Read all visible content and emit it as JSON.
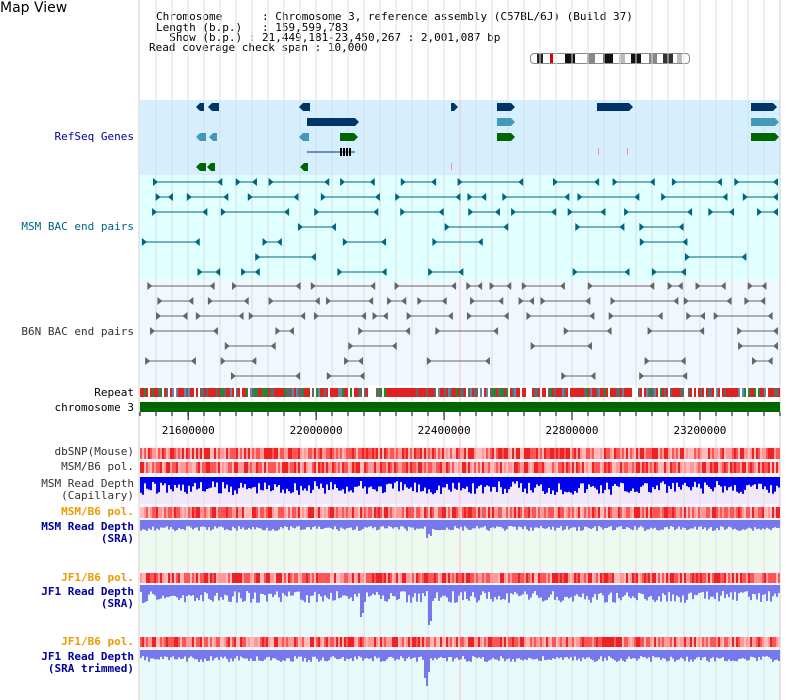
{
  "app_title": "Map View",
  "info": {
    "chromosome_label": "Chromosome",
    "chromosome_value": "Chromosome 3, reference assembly (C57BL/6J) (Build 37)",
    "length_label": "Length (b.p.)",
    "length_value": "159,599,783",
    "show_label": "Show (b.p.)",
    "show_value": "21,449,181-23,450,267 : 2,001,087 bp",
    "span_label": "Read coverage check span",
    "span_value": "10,000"
  },
  "tracks": {
    "refseq": "RefSeq Genes",
    "msm_bac": "MSM BAC end pairs",
    "b6n_bac": "B6N BAC end pairs",
    "repeat": "Repeat",
    "chromosome": "chromosome 3",
    "dbsnp": "dbSNP(Mouse)",
    "msm_b6_pol": "MSM/B6 pol.",
    "msm_depth_cap_1": "MSM Read Depth",
    "msm_depth_cap_2": "(Capillary)",
    "msm_b6_pol_2": "MSM/B6 pol.",
    "msm_depth_sra_1": "MSM Read Depth",
    "msm_depth_sra_2": "(SRA)",
    "jf1_b6_pol": "JF1/B6 pol.",
    "jf1_depth_sra_1": "JF1 Read Depth",
    "jf1_depth_sra_2": "(SRA)",
    "jf1_b6_pol_2": "JF1/B6 pol.",
    "jf1_depth_trim_1": "JF1 Read Depth",
    "jf1_depth_trim_2": "(SRA trimmed)"
  },
  "axis": {
    "ticks": [
      "21600000",
      "22000000",
      "22400000",
      "22800000",
      "23200000"
    ],
    "tick_values": [
      21600000,
      22000000,
      22400000,
      22800000,
      23200000
    ],
    "range": [
      21449181,
      23450267
    ]
  },
  "colors": {
    "refseq_bg": "#d6efff",
    "bac_bg": "#e0ffff",
    "b6n_bg": "#f0f8ff",
    "gene_dark": "#003366",
    "gene_light": "#4499bb",
    "gene_green": "#006600",
    "msm_bac": "#006680",
    "b6n_bac": "#666666",
    "chromosome": "#006600",
    "depth_dark": "#0000ee",
    "depth_light": "#7777ee",
    "label_blue": "#000099",
    "label_orange": "#ee9900",
    "label_gray": "#333333"
  }
}
